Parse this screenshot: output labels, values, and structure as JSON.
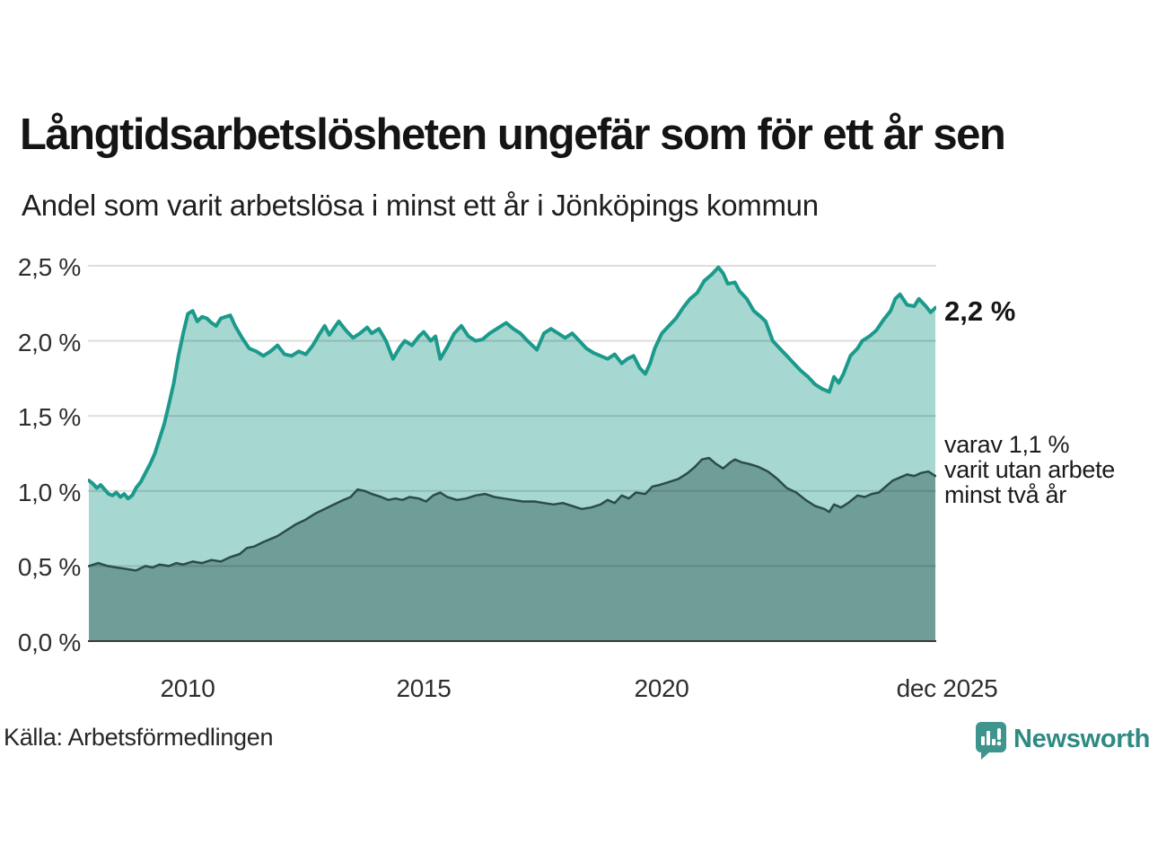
{
  "header": {
    "title": "Långtidsarbetslösheten ungefär som för ett år sen",
    "subtitle": "Andel som varit arbetslösa i minst ett år i Jönköpings kommun"
  },
  "annotations": {
    "total_end_label": "2,2 %",
    "secondary_lines": [
      "varav 1,1 %",
      "varit utan arbete",
      "minst två år"
    ]
  },
  "footer": {
    "source": "Källa: Arbetsförmedlingen",
    "brand": "Newsworthy"
  },
  "colors": {
    "accent_teal": "#1b9a8c",
    "light_fill": "#a6d7d0",
    "dark_line": "#2c4c48",
    "dark_fill": "#6f9e99",
    "brand_teal": "#3f958d"
  },
  "chart_data": {
    "type": "area",
    "title": "Långtidsarbetslösheten ungefär som för ett år sen",
    "subtitle": "Andel som varit arbetslösa i minst ett år i Jönköpings kommun",
    "x_range": [
      2008,
      2025.95
    ],
    "ylim": [
      0,
      2.6
    ],
    "grid": true,
    "grid_color": "rgba(0,0,0,0.13)",
    "axis_color": "#3a3a3a",
    "yticks": [
      0,
      0.5,
      1.0,
      1.5,
      2.0,
      2.5
    ],
    "ytick_labels": [
      "0,0 %",
      "0,5 %",
      "1,0 %",
      "1,5 %",
      "2,0 %",
      "2,5 %"
    ],
    "xticks": [
      2010,
      2015,
      2020,
      2025.92
    ],
    "xtick_labels": [
      "2010",
      "2015",
      "2020",
      "dec 2025"
    ],
    "legend_position": "end-of-line labels (right side)",
    "series": [
      {
        "name": "Andel arbetslösa minst ett år",
        "end_label": "2,2 %",
        "end_value": 2.2,
        "color": "#1b9a8c",
        "fill": "#a6d7d0",
        "width": 4,
        "points": [
          [
            2008.0,
            1.07
          ],
          [
            2008.08,
            1.05
          ],
          [
            2008.17,
            1.02
          ],
          [
            2008.25,
            1.04
          ],
          [
            2008.42,
            0.98
          ],
          [
            2008.5,
            0.97
          ],
          [
            2008.58,
            0.99
          ],
          [
            2008.67,
            0.96
          ],
          [
            2008.75,
            0.98
          ],
          [
            2008.83,
            0.95
          ],
          [
            2008.92,
            0.97
          ],
          [
            2009.0,
            1.02
          ],
          [
            2009.1,
            1.06
          ],
          [
            2009.2,
            1.12
          ],
          [
            2009.3,
            1.18
          ],
          [
            2009.4,
            1.25
          ],
          [
            2009.5,
            1.35
          ],
          [
            2009.6,
            1.45
          ],
          [
            2009.7,
            1.58
          ],
          [
            2009.8,
            1.72
          ],
          [
            2009.9,
            1.9
          ],
          [
            2010.0,
            2.05
          ],
          [
            2010.1,
            2.18
          ],
          [
            2010.2,
            2.2
          ],
          [
            2010.3,
            2.13
          ],
          [
            2010.4,
            2.16
          ],
          [
            2010.5,
            2.15
          ],
          [
            2010.6,
            2.12
          ],
          [
            2010.7,
            2.1
          ],
          [
            2010.8,
            2.15
          ],
          [
            2010.9,
            2.16
          ],
          [
            2011.0,
            2.17
          ],
          [
            2011.1,
            2.1
          ],
          [
            2011.25,
            2.02
          ],
          [
            2011.4,
            1.95
          ],
          [
            2011.55,
            1.93
          ],
          [
            2011.7,
            1.9
          ],
          [
            2011.85,
            1.93
          ],
          [
            2012.0,
            1.97
          ],
          [
            2012.15,
            1.91
          ],
          [
            2012.3,
            1.9
          ],
          [
            2012.45,
            1.93
          ],
          [
            2012.6,
            1.91
          ],
          [
            2012.75,
            1.97
          ],
          [
            2012.9,
            2.05
          ],
          [
            2013.0,
            2.1
          ],
          [
            2013.1,
            2.04
          ],
          [
            2013.3,
            2.13
          ],
          [
            2013.45,
            2.07
          ],
          [
            2013.6,
            2.02
          ],
          [
            2013.75,
            2.05
          ],
          [
            2013.9,
            2.09
          ],
          [
            2014.0,
            2.05
          ],
          [
            2014.15,
            2.08
          ],
          [
            2014.3,
            2.0
          ],
          [
            2014.45,
            1.88
          ],
          [
            2014.6,
            1.96
          ],
          [
            2014.7,
            2.0
          ],
          [
            2014.85,
            1.97
          ],
          [
            2015.0,
            2.03
          ],
          [
            2015.1,
            2.06
          ],
          [
            2015.25,
            2.0
          ],
          [
            2015.35,
            2.03
          ],
          [
            2015.45,
            1.88
          ],
          [
            2015.6,
            1.96
          ],
          [
            2015.75,
            2.05
          ],
          [
            2015.9,
            2.1
          ],
          [
            2016.05,
            2.03
          ],
          [
            2016.2,
            2.0
          ],
          [
            2016.35,
            2.01
          ],
          [
            2016.5,
            2.05
          ],
          [
            2016.65,
            2.08
          ],
          [
            2016.85,
            2.12
          ],
          [
            2017.0,
            2.08
          ],
          [
            2017.15,
            2.05
          ],
          [
            2017.3,
            2.0
          ],
          [
            2017.5,
            1.94
          ],
          [
            2017.65,
            2.05
          ],
          [
            2017.8,
            2.08
          ],
          [
            2017.95,
            2.05
          ],
          [
            2018.1,
            2.02
          ],
          [
            2018.25,
            2.05
          ],
          [
            2018.4,
            2.0
          ],
          [
            2018.55,
            1.95
          ],
          [
            2018.7,
            1.92
          ],
          [
            2018.85,
            1.9
          ],
          [
            2019.0,
            1.88
          ],
          [
            2019.15,
            1.91
          ],
          [
            2019.3,
            1.85
          ],
          [
            2019.42,
            1.88
          ],
          [
            2019.55,
            1.9
          ],
          [
            2019.68,
            1.82
          ],
          [
            2019.8,
            1.78
          ],
          [
            2019.9,
            1.85
          ],
          [
            2020.0,
            1.95
          ],
          [
            2020.15,
            2.05
          ],
          [
            2020.3,
            2.1
          ],
          [
            2020.45,
            2.15
          ],
          [
            2020.6,
            2.22
          ],
          [
            2020.75,
            2.28
          ],
          [
            2020.9,
            2.32
          ],
          [
            2021.05,
            2.4
          ],
          [
            2021.2,
            2.44
          ],
          [
            2021.35,
            2.49
          ],
          [
            2021.45,
            2.45
          ],
          [
            2021.55,
            2.38
          ],
          [
            2021.7,
            2.39
          ],
          [
            2021.8,
            2.33
          ],
          [
            2021.95,
            2.28
          ],
          [
            2022.1,
            2.2
          ],
          [
            2022.25,
            2.16
          ],
          [
            2022.35,
            2.13
          ],
          [
            2022.5,
            2.0
          ],
          [
            2022.65,
            1.95
          ],
          [
            2022.8,
            1.9
          ],
          [
            2022.95,
            1.85
          ],
          [
            2023.1,
            1.8
          ],
          [
            2023.25,
            1.76
          ],
          [
            2023.4,
            1.71
          ],
          [
            2023.55,
            1.68
          ],
          [
            2023.7,
            1.66
          ],
          [
            2023.8,
            1.76
          ],
          [
            2023.9,
            1.72
          ],
          [
            2024.0,
            1.78
          ],
          [
            2024.15,
            1.9
          ],
          [
            2024.3,
            1.95
          ],
          [
            2024.4,
            2.0
          ],
          [
            2024.55,
            2.03
          ],
          [
            2024.7,
            2.07
          ],
          [
            2024.85,
            2.14
          ],
          [
            2025.0,
            2.2
          ],
          [
            2025.1,
            2.28
          ],
          [
            2025.2,
            2.31
          ],
          [
            2025.35,
            2.24
          ],
          [
            2025.5,
            2.23
          ],
          [
            2025.6,
            2.28
          ],
          [
            2025.75,
            2.23
          ],
          [
            2025.85,
            2.19
          ],
          [
            2025.95,
            2.22
          ]
        ]
      },
      {
        "name": "varav utan arbete minst två år",
        "end_label": "varav 1,1 % varit utan arbete minst två år",
        "end_value": 1.1,
        "color": "#2c4c48",
        "fill": "#6f9e99",
        "width": 2.5,
        "points": [
          [
            2008.0,
            0.5
          ],
          [
            2008.2,
            0.52
          ],
          [
            2008.4,
            0.5
          ],
          [
            2008.6,
            0.49
          ],
          [
            2008.8,
            0.48
          ],
          [
            2009.0,
            0.47
          ],
          [
            2009.2,
            0.5
          ],
          [
            2009.35,
            0.49
          ],
          [
            2009.5,
            0.51
          ],
          [
            2009.7,
            0.5
          ],
          [
            2009.85,
            0.52
          ],
          [
            2010.0,
            0.51
          ],
          [
            2010.2,
            0.53
          ],
          [
            2010.4,
            0.52
          ],
          [
            2010.6,
            0.54
          ],
          [
            2010.8,
            0.53
          ],
          [
            2011.0,
            0.56
          ],
          [
            2011.2,
            0.58
          ],
          [
            2011.35,
            0.62
          ],
          [
            2011.5,
            0.63
          ],
          [
            2011.7,
            0.66
          ],
          [
            2011.85,
            0.68
          ],
          [
            2012.0,
            0.7
          ],
          [
            2012.2,
            0.74
          ],
          [
            2012.4,
            0.78
          ],
          [
            2012.6,
            0.81
          ],
          [
            2012.8,
            0.85
          ],
          [
            2013.0,
            0.88
          ],
          [
            2013.2,
            0.91
          ],
          [
            2013.4,
            0.94
          ],
          [
            2013.55,
            0.96
          ],
          [
            2013.7,
            1.01
          ],
          [
            2013.85,
            1.0
          ],
          [
            2014.0,
            0.98
          ],
          [
            2014.2,
            0.96
          ],
          [
            2014.35,
            0.94
          ],
          [
            2014.5,
            0.95
          ],
          [
            2014.65,
            0.94
          ],
          [
            2014.8,
            0.96
          ],
          [
            2015.0,
            0.95
          ],
          [
            2015.15,
            0.93
          ],
          [
            2015.3,
            0.97
          ],
          [
            2015.45,
            0.99
          ],
          [
            2015.6,
            0.96
          ],
          [
            2015.8,
            0.94
          ],
          [
            2016.0,
            0.95
          ],
          [
            2016.2,
            0.97
          ],
          [
            2016.4,
            0.98
          ],
          [
            2016.6,
            0.96
          ],
          [
            2016.8,
            0.95
          ],
          [
            2017.0,
            0.94
          ],
          [
            2017.2,
            0.93
          ],
          [
            2017.45,
            0.93
          ],
          [
            2017.65,
            0.92
          ],
          [
            2017.85,
            0.91
          ],
          [
            2018.05,
            0.92
          ],
          [
            2018.25,
            0.9
          ],
          [
            2018.45,
            0.88
          ],
          [
            2018.65,
            0.89
          ],
          [
            2018.85,
            0.91
          ],
          [
            2019.0,
            0.94
          ],
          [
            2019.15,
            0.92
          ],
          [
            2019.3,
            0.97
          ],
          [
            2019.45,
            0.95
          ],
          [
            2019.6,
            0.99
          ],
          [
            2019.8,
            0.98
          ],
          [
            2019.95,
            1.03
          ],
          [
            2020.1,
            1.04
          ],
          [
            2020.3,
            1.06
          ],
          [
            2020.5,
            1.08
          ],
          [
            2020.7,
            1.12
          ],
          [
            2020.85,
            1.16
          ],
          [
            2021.0,
            1.21
          ],
          [
            2021.15,
            1.22
          ],
          [
            2021.3,
            1.18
          ],
          [
            2021.45,
            1.15
          ],
          [
            2021.6,
            1.19
          ],
          [
            2021.7,
            1.21
          ],
          [
            2021.85,
            1.19
          ],
          [
            2022.0,
            1.18
          ],
          [
            2022.2,
            1.16
          ],
          [
            2022.4,
            1.13
          ],
          [
            2022.6,
            1.08
          ],
          [
            2022.8,
            1.02
          ],
          [
            2023.0,
            0.99
          ],
          [
            2023.2,
            0.94
          ],
          [
            2023.4,
            0.9
          ],
          [
            2023.6,
            0.88
          ],
          [
            2023.7,
            0.86
          ],
          [
            2023.8,
            0.91
          ],
          [
            2023.95,
            0.89
          ],
          [
            2024.1,
            0.92
          ],
          [
            2024.3,
            0.97
          ],
          [
            2024.45,
            0.96
          ],
          [
            2024.6,
            0.98
          ],
          [
            2024.75,
            0.99
          ],
          [
            2024.9,
            1.03
          ],
          [
            2025.05,
            1.07
          ],
          [
            2025.2,
            1.09
          ],
          [
            2025.35,
            1.11
          ],
          [
            2025.5,
            1.1
          ],
          [
            2025.65,
            1.12
          ],
          [
            2025.8,
            1.13
          ],
          [
            2025.95,
            1.1
          ]
        ]
      }
    ]
  }
}
